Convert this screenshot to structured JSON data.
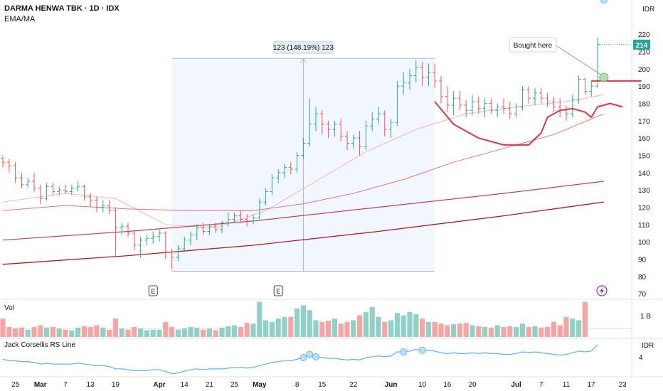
{
  "header": {
    "symbol_line": "DARMA HENWA TBK · 1D · IDX",
    "indicator_line": "EMA/MA",
    "price_unit": "IDR"
  },
  "volume_panel": {
    "label": "Vol",
    "axis_label": "1 B"
  },
  "rs_panel": {
    "label": "Jack Corsellis RS Line",
    "unit": "IDR",
    "axis_label": "4"
  },
  "colors": {
    "up": "#26a69a",
    "down": "#ef5350",
    "up_vol": "#8fd1c7",
    "down_vol": "#f7a5a3",
    "ma_short": "#f1b5b2",
    "ma_mid": "#e57373",
    "ma_long": "#b71c1c",
    "rs_line": "#64b5f6",
    "annotation_red": "#e03545",
    "last_price_bg": "#26a69a"
  },
  "chart_data": {
    "type": "candlestick",
    "y_axis": {
      "ticks": [
        70,
        80,
        90,
        100,
        110,
        120,
        130,
        140,
        150,
        160,
        170,
        180,
        190,
        200,
        210,
        220
      ],
      "range": [
        68,
        225
      ]
    },
    "last_price": "214",
    "x_axis_ticks": [
      {
        "label": "25",
        "i": 2
      },
      {
        "label": "Mar",
        "i": 6
      },
      {
        "label": "7",
        "i": 10
      },
      {
        "label": "13",
        "i": 14
      },
      {
        "label": "19",
        "i": 18
      },
      {
        "label": "Apr",
        "i": 25
      },
      {
        "label": "14",
        "i": 29
      },
      {
        "label": "21",
        "i": 33
      },
      {
        "label": "25",
        "i": 37
      },
      {
        "label": "May",
        "i": 41
      },
      {
        "label": "8",
        "i": 47
      },
      {
        "label": "15",
        "i": 51
      },
      {
        "label": "22",
        "i": 56
      },
      {
        "label": "Jun",
        "i": 62
      },
      {
        "label": "10",
        "i": 67
      },
      {
        "label": "16",
        "i": 71
      },
      {
        "label": "20",
        "i": 75
      },
      {
        "label": "Jul",
        "i": 82
      },
      {
        "label": "7",
        "i": 86
      },
      {
        "label": "11",
        "i": 90
      },
      {
        "label": "17",
        "i": 94
      },
      {
        "label": "23",
        "i": 99
      }
    ],
    "candles": [
      [
        148,
        150,
        143,
        146
      ],
      [
        146,
        148,
        140,
        144
      ],
      [
        144,
        146,
        134,
        137
      ],
      [
        137,
        140,
        131,
        133
      ],
      [
        133,
        137,
        131,
        135
      ],
      [
        135,
        140,
        129,
        131
      ],
      [
        131,
        133,
        122,
        125
      ],
      [
        125,
        134,
        124,
        132
      ],
      [
        132,
        134,
        127,
        129
      ],
      [
        129,
        132,
        127,
        130
      ],
      [
        130,
        133,
        128,
        129
      ],
      [
        129,
        133,
        127,
        131
      ],
      [
        131,
        135,
        129,
        132
      ],
      [
        132,
        133,
        124,
        126
      ],
      [
        126,
        128,
        120,
        124
      ],
      [
        124,
        126,
        117,
        120
      ],
      [
        120,
        124,
        117,
        121
      ],
      [
        121,
        124,
        116,
        118
      ],
      [
        118,
        120,
        91,
        108
      ],
      [
        108,
        111,
        104,
        109
      ],
      [
        109,
        111,
        103,
        105
      ],
      [
        105,
        107,
        95,
        98
      ],
      [
        98,
        103,
        91,
        101
      ],
      [
        101,
        104,
        98,
        102
      ],
      [
        102,
        106,
        99,
        103
      ],
      [
        103,
        107,
        100,
        105
      ],
      [
        105,
        106,
        90,
        94
      ],
      [
        94,
        96,
        84,
        91
      ],
      [
        91,
        98,
        89,
        96
      ],
      [
        96,
        103,
        94,
        101
      ],
      [
        101,
        106,
        98,
        104
      ],
      [
        104,
        110,
        101,
        108
      ],
      [
        108,
        111,
        104,
        106
      ],
      [
        106,
        110,
        104,
        109
      ],
      [
        109,
        111,
        105,
        107
      ],
      [
        107,
        112,
        105,
        111
      ],
      [
        111,
        117,
        109,
        113
      ],
      [
        113,
        117,
        111,
        115
      ],
      [
        115,
        118,
        111,
        113
      ],
      [
        113,
        116,
        109,
        112
      ],
      [
        112,
        116,
        110,
        114
      ],
      [
        114,
        125,
        113,
        123
      ],
      [
        123,
        131,
        121,
        129
      ],
      [
        129,
        139,
        127,
        137
      ],
      [
        137,
        142,
        134,
        140
      ],
      [
        140,
        145,
        137,
        143
      ],
      [
        143,
        146,
        139,
        142
      ],
      [
        142,
        152,
        140,
        150
      ],
      [
        150,
        160,
        148,
        157
      ],
      [
        157,
        183,
        155,
        168
      ],
      [
        168,
        178,
        164,
        174
      ],
      [
        174,
        176,
        162,
        168
      ],
      [
        168,
        170,
        160,
        165
      ],
      [
        165,
        170,
        161,
        168
      ],
      [
        168,
        171,
        158,
        161
      ],
      [
        161,
        164,
        153,
        157
      ],
      [
        157,
        162,
        154,
        160
      ],
      [
        160,
        164,
        150,
        155
      ],
      [
        155,
        170,
        153,
        167
      ],
      [
        167,
        175,
        164,
        171
      ],
      [
        171,
        178,
        168,
        174
      ],
      [
        174,
        176,
        161,
        165
      ],
      [
        165,
        171,
        160,
        169
      ],
      [
        169,
        193,
        167,
        190
      ],
      [
        190,
        198,
        185,
        192
      ],
      [
        192,
        200,
        188,
        196
      ],
      [
        196,
        205,
        192,
        201
      ],
      [
        201,
        204,
        190,
        195
      ],
      [
        195,
        203,
        190,
        198
      ],
      [
        198,
        203,
        189,
        193
      ],
      [
        193,
        196,
        180,
        184
      ],
      [
        184,
        190,
        175,
        179
      ],
      [
        179,
        187,
        173,
        183
      ],
      [
        183,
        187,
        176,
        179
      ],
      [
        179,
        182,
        172,
        176
      ],
      [
        176,
        185,
        173,
        181
      ],
      [
        181,
        184,
        174,
        177
      ],
      [
        177,
        183,
        172,
        180
      ],
      [
        180,
        183,
        174,
        176
      ],
      [
        176,
        180,
        172,
        178
      ],
      [
        178,
        183,
        174,
        177
      ],
      [
        177,
        181,
        171,
        174
      ],
      [
        174,
        180,
        172,
        178
      ],
      [
        178,
        190,
        176,
        188
      ],
      [
        188,
        190,
        180,
        183
      ],
      [
        183,
        189,
        179,
        186
      ],
      [
        186,
        189,
        180,
        183
      ],
      [
        183,
        186,
        178,
        181
      ],
      [
        181,
        184,
        175,
        178
      ],
      [
        178,
        183,
        172,
        176
      ],
      [
        176,
        179,
        170,
        174
      ],
      [
        174,
        185,
        172,
        182
      ],
      [
        182,
        196,
        180,
        194
      ],
      [
        194,
        195,
        185,
        187
      ],
      [
        187,
        193,
        184,
        190
      ],
      [
        190,
        218,
        189,
        214
      ]
    ],
    "volume": [
      0.55,
      0.3,
      0.25,
      0.28,
      0.22,
      0.3,
      0.35,
      0.28,
      0.3,
      0.25,
      0.22,
      0.2,
      0.28,
      0.32,
      0.3,
      0.35,
      0.28,
      0.22,
      0.55,
      0.25,
      0.22,
      0.3,
      0.25,
      0.2,
      0.22,
      0.22,
      0.45,
      0.3,
      0.22,
      0.25,
      0.3,
      0.28,
      0.22,
      0.25,
      0.2,
      0.28,
      0.32,
      0.35,
      0.3,
      0.42,
      0.4,
      1.05,
      0.5,
      0.45,
      0.55,
      0.6,
      0.6,
      0.85,
      0.95,
      0.8,
      0.5,
      0.45,
      0.48,
      0.55,
      0.4,
      0.45,
      0.5,
      0.65,
      0.75,
      0.9,
      0.6,
      0.45,
      0.5,
      0.72,
      0.65,
      0.75,
      0.68,
      0.55,
      0.45,
      0.45,
      0.4,
      0.35,
      0.38,
      0.4,
      0.42,
      0.35,
      0.32,
      0.3,
      0.28,
      0.35,
      0.3,
      0.32,
      0.3,
      0.4,
      0.3,
      0.32,
      0.28,
      0.3,
      0.45,
      0.35,
      0.6,
      0.55,
      0.5,
      1.05
    ],
    "rs_line": [
      5.0,
      4.9,
      4.9,
      4.85,
      4.85,
      4.8,
      4.7,
      4.75,
      4.7,
      4.7,
      4.7,
      4.7,
      4.75,
      4.7,
      4.65,
      4.6,
      4.6,
      4.55,
      4.4,
      4.4,
      4.35,
      4.3,
      4.3,
      4.3,
      4.35,
      4.35,
      4.25,
      4.1,
      4.15,
      4.25,
      4.35,
      4.4,
      4.35,
      4.4,
      4.4,
      4.4,
      4.45,
      4.5,
      4.5,
      4.45,
      4.5,
      4.6,
      4.7,
      4.8,
      4.85,
      4.9,
      4.9,
      5.0,
      5.1,
      5.3,
      5.15,
      5.1,
      5.05,
      5.05,
      5.0,
      4.95,
      5.0,
      4.95,
      5.1,
      5.15,
      5.2,
      5.15,
      5.2,
      5.45,
      5.45,
      5.5,
      5.6,
      5.55,
      5.55,
      5.5,
      5.4,
      5.35,
      5.4,
      5.35,
      5.35,
      5.4,
      5.35,
      5.4,
      5.35,
      5.35,
      5.3,
      5.3,
      5.35,
      5.45,
      5.4,
      5.45,
      5.4,
      5.35,
      5.3,
      5.25,
      5.3,
      5.4,
      5.5,
      5.45,
      5.5,
      5.9
    ],
    "ma_short": [
      [
        0,
        123
      ],
      [
        10,
        128
      ],
      [
        18,
        125
      ],
      [
        26,
        110
      ],
      [
        34,
        108
      ],
      [
        42,
        118
      ],
      [
        50,
        135
      ],
      [
        58,
        152
      ],
      [
        66,
        165
      ],
      [
        74,
        174
      ],
      [
        82,
        178
      ],
      [
        90,
        181
      ],
      [
        96,
        185
      ]
    ],
    "ma_mid": [
      [
        0,
        118
      ],
      [
        10,
        121
      ],
      [
        20,
        119
      ],
      [
        30,
        118
      ],
      [
        40,
        118
      ],
      [
        48,
        122
      ],
      [
        56,
        128
      ],
      [
        64,
        136
      ],
      [
        72,
        146
      ],
      [
        80,
        154
      ],
      [
        88,
        162
      ],
      [
        96,
        174
      ]
    ],
    "ma_long": [
      [
        0,
        101
      ],
      [
        20,
        106
      ],
      [
        40,
        112
      ],
      [
        60,
        120
      ],
      [
        80,
        128
      ],
      [
        96,
        135
      ]
    ],
    "ma_long2": [
      [
        0,
        87
      ],
      [
        20,
        92
      ],
      [
        40,
        98
      ],
      [
        60,
        106
      ],
      [
        80,
        115
      ],
      [
        96,
        123
      ]
    ],
    "measure": {
      "from_i": 27,
      "to_i": 69,
      "low": 83,
      "high": 206,
      "label": "123 (148.19%) 123"
    },
    "earnings_markers": [
      {
        "label": "E",
        "i": 24
      },
      {
        "label": "E",
        "i": 44
      }
    ],
    "annotation": {
      "text": "Bought here",
      "i": 96,
      "price": 195
    },
    "resistance": {
      "from_i": 94,
      "to_i": 102,
      "price": 193
    }
  }
}
